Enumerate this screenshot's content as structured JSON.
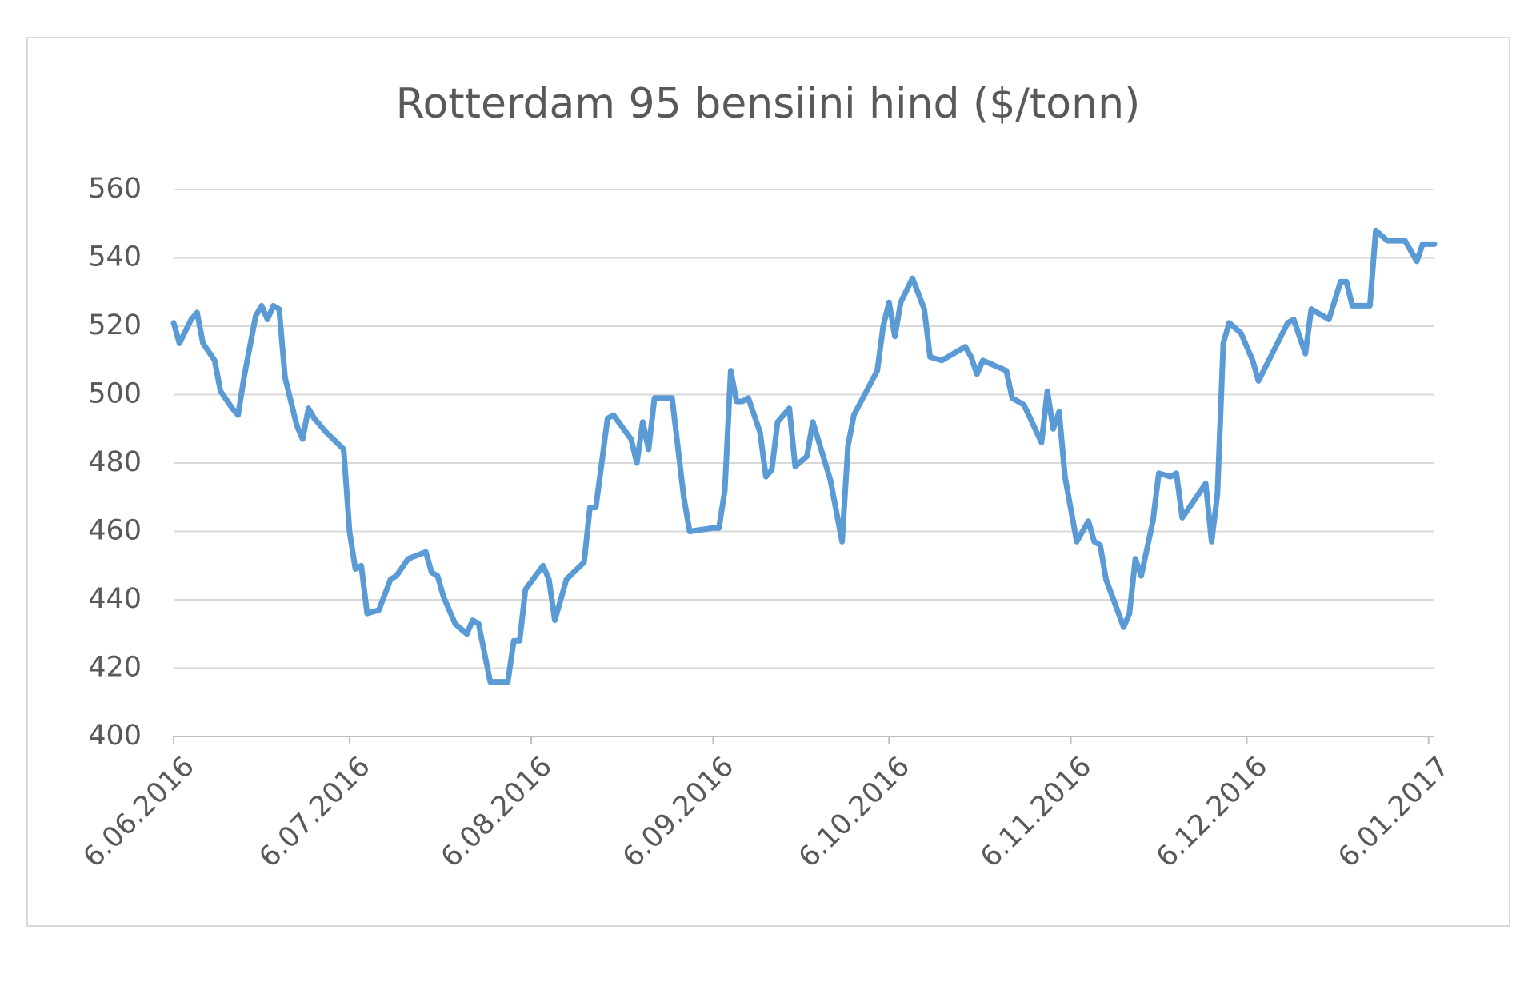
{
  "chart_data": {
    "type": "line",
    "title": "Rotterdam 95 bensiini hind ($/tonn)",
    "x": [
      "6.06.2016",
      "7.06.2016",
      "9.06.2016",
      "10.06.2016",
      "11.06.2016",
      "13.06.2016",
      "14.06.2016",
      "16.06.2016",
      "17.06.2016",
      "18.06.2016",
      "20.06.2016",
      "21.06.2016",
      "22.06.2016",
      "23.06.2016",
      "24.06.2016",
      "25.06.2016",
      "27.06.2016",
      "28.06.2016",
      "29.06.2016",
      "30.06.2016",
      "2.07.2016",
      "5.07.2016",
      "6.07.2016",
      "7.07.2016",
      "8.07.2016",
      "9.07.2016",
      "11.07.2016",
      "13.07.2016",
      "14.07.2016",
      "16.07.2016",
      "19.07.2016",
      "20.07.2016",
      "21.07.2016",
      "22.07.2016",
      "24.07.2016",
      "26.07.2016",
      "27.07.2016",
      "28.07.2016",
      "30.07.2016",
      "2.08.2016",
      "3.08.2016",
      "4.08.2016",
      "5.08.2016",
      "8.08.2016",
      "9.08.2016",
      "10.08.2016",
      "12.08.2016",
      "15.08.2016",
      "16.08.2016",
      "17.08.2016",
      "19.08.2016",
      "20.08.2016",
      "23.08.2016",
      "24.08.2016",
      "25.08.2016",
      "26.08.2016",
      "27.08.2016",
      "30.08.2016",
      "1.09.2016",
      "2.09.2016",
      "6.09.2016",
      "7.09.2016",
      "8.09.2016",
      "9.09.2016",
      "10.09.2016",
      "11.09.2016",
      "12.09.2016",
      "14.09.2016",
      "15.09.2016",
      "16.09.2016",
      "17.09.2016",
      "19.09.2016",
      "20.09.2016",
      "22.09.2016",
      "23.09.2016",
      "26.09.2016",
      "28.09.2016",
      "29.09.2016",
      "30.09.2016",
      "4.10.2016",
      "5.10.2016",
      "6.10.2016",
      "7.10.2016",
      "8.10.2016",
      "10.10.2016",
      "12.10.2016",
      "13.10.2016",
      "15.10.2016",
      "19.10.2016",
      "20.10.2016",
      "21.10.2016",
      "22.10.2016",
      "26.10.2016",
      "27.10.2016",
      "29.10.2016",
      "1.11.2016",
      "2.11.2016",
      "3.11.2016",
      "4.11.2016",
      "5.11.2016",
      "7.11.2016",
      "9.11.2016",
      "10.11.2016",
      "11.11.2016",
      "12.11.2016",
      "15.11.2016",
      "16.11.2016",
      "17.11.2016",
      "18.11.2016",
      "20.11.2016",
      "21.11.2016",
      "23.11.2016",
      "24.11.2016",
      "25.11.2016",
      "27.11.2016",
      "29.11.2016",
      "30.11.2016",
      "1.12.2016",
      "2.12.2016",
      "3.12.2016",
      "5.12.2016",
      "7.12.2016",
      "8.12.2016",
      "13.12.2016",
      "14.12.2016",
      "16.12.2016",
      "17.12.2016",
      "20.12.2016",
      "22.12.2016",
      "23.12.2016",
      "24.12.2016",
      "27.12.2016",
      "28.12.2016",
      "30.12.2016",
      "2.01.2017",
      "4.01.2017",
      "5.01.2017",
      "7.01.2017"
    ],
    "series": [
      {
        "color": "#5b9bd5",
        "values": [
          521,
          515,
          522,
          524,
          515,
          510,
          501,
          496,
          494,
          505,
          523,
          526,
          522,
          526,
          525,
          505,
          491,
          487,
          496,
          493,
          489,
          484,
          460,
          449,
          450,
          436,
          437,
          446,
          447,
          452,
          454,
          448,
          447,
          441,
          433,
          430,
          434,
          433,
          416,
          416,
          428,
          428,
          443,
          450,
          446,
          434,
          446,
          451,
          467,
          467,
          493,
          494,
          487,
          480,
          492,
          484,
          499,
          499,
          470,
          460,
          461,
          461,
          472,
          507,
          498,
          498,
          499,
          489,
          476,
          478,
          492,
          496,
          479,
          482,
          492,
          475,
          457,
          485,
          494,
          507,
          520,
          527,
          517,
          527,
          534,
          525,
          511,
          510,
          514,
          511,
          506,
          510,
          507,
          499,
          497,
          486,
          501,
          490,
          495,
          476,
          457,
          463,
          457,
          456,
          446,
          432,
          436,
          452,
          447,
          463,
          477,
          476,
          477,
          464,
          469,
          474,
          457,
          471,
          515,
          521,
          518,
          510,
          504,
          521,
          522,
          512,
          525,
          522,
          533,
          533,
          526,
          526,
          548,
          545,
          545,
          539,
          544,
          544
        ]
      }
    ],
    "xlim": [
      "6.06.2016",
      "7.01.2017"
    ],
    "xticks": [
      "6.06.2016",
      "6.07.2016",
      "6.08.2016",
      "6.09.2016",
      "6.10.2016",
      "6.11.2016",
      "6.12.2016",
      "6.01.2017"
    ],
    "ylim": [
      400,
      560
    ],
    "yticks": [
      400,
      420,
      440,
      460,
      480,
      500,
      520,
      540,
      560
    ],
    "grid": true
  }
}
